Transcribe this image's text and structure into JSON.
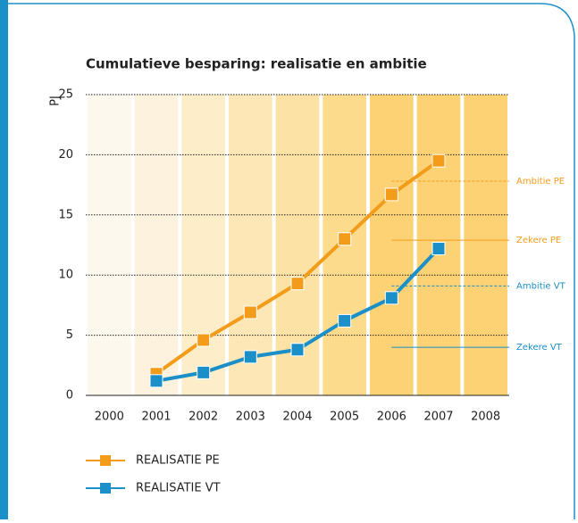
{
  "chart_data": {
    "type": "line",
    "title": "Cumulatieve besparing: realisatie en ambitie",
    "y_label": "PJ",
    "categories": [
      "2000",
      "2001",
      "2002",
      "2003",
      "2004",
      "2005",
      "2006",
      "2007",
      "2008"
    ],
    "column_colors": [
      "#fdf8ee",
      "#fdf2dd",
      "#fdedc9",
      "#fde7b6",
      "#fde2a5",
      "#fddb8d",
      "#fcd275",
      "#fcd275",
      "#fcd275"
    ],
    "series": [
      {
        "name": "REALISATIE PE",
        "color": "#f39c1a",
        "values": [
          null,
          1.8,
          4.6,
          6.9,
          9.3,
          13.0,
          16.7,
          19.5,
          null
        ]
      },
      {
        "name": "REALISATIE VT",
        "color": "#1a8fc8",
        "values": [
          null,
          1.2,
          1.9,
          3.2,
          3.8,
          6.2,
          8.1,
          12.2,
          null
        ]
      }
    ],
    "annotations": [
      {
        "text": "Ambitie PE",
        "value": 17.8,
        "color": "#f39c1a",
        "dashed": true
      },
      {
        "text": "Zekere PE",
        "value": 12.9,
        "color": "#f39c1a",
        "dashed": false
      },
      {
        "text": "Ambitie VT",
        "value": 9.1,
        "color": "#1a8fc8",
        "dashed": true
      },
      {
        "text": "Zekere VT",
        "value": 4.0,
        "color": "#1a8fc8",
        "dashed": false
      }
    ],
    "ylim": [
      0,
      25
    ],
    "yticks": [
      0,
      5,
      10,
      15,
      20,
      25
    ],
    "grid": true
  }
}
